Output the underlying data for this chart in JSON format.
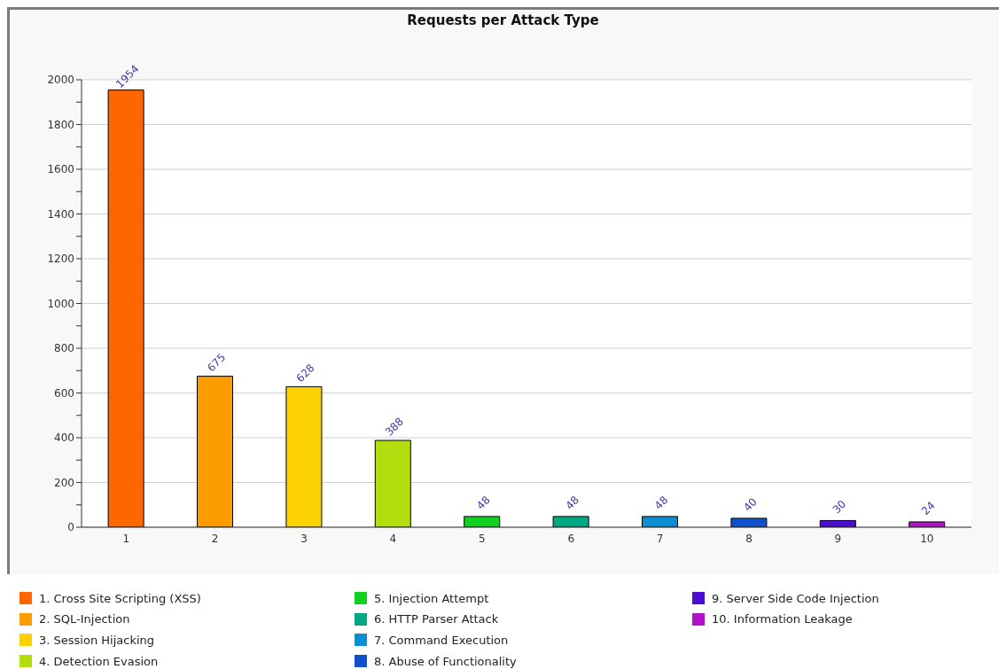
{
  "chart_data": {
    "type": "bar",
    "title": "Requests per Attack Type",
    "categories": [
      "1",
      "2",
      "3",
      "4",
      "5",
      "6",
      "7",
      "8",
      "9",
      "10"
    ],
    "series": [
      {
        "name": "1. Cross Site Scripting (XSS)",
        "color": "#ff6600",
        "values": [
          1954,
          null,
          null,
          null,
          null,
          null,
          null,
          null,
          null,
          null
        ]
      },
      {
        "name": "2. SQL-Injection",
        "color": "#fd9c00",
        "values": [
          null,
          675,
          null,
          null,
          null,
          null,
          null,
          null,
          null,
          null
        ]
      },
      {
        "name": "3. Session Hijacking",
        "color": "#fcd200",
        "values": [
          null,
          null,
          628,
          null,
          null,
          null,
          null,
          null,
          null,
          null
        ]
      },
      {
        "name": "4. Detection Evasion",
        "color": "#b2de10",
        "values": [
          null,
          null,
          null,
          388,
          null,
          null,
          null,
          null,
          null,
          null
        ]
      },
      {
        "name": "5. Injection Attempt",
        "color": "#10d020",
        "values": [
          null,
          null,
          null,
          null,
          48,
          null,
          null,
          null,
          null,
          null
        ]
      },
      {
        "name": "6. HTTP Parser Attack",
        "color": "#00a884",
        "values": [
          null,
          null,
          null,
          null,
          null,
          48,
          null,
          null,
          null,
          null
        ]
      },
      {
        "name": "7. Command Execution",
        "color": "#0b8ed2",
        "values": [
          null,
          null,
          null,
          null,
          null,
          null,
          48,
          null,
          null,
          null
        ]
      },
      {
        "name": "8. Abuse of Functionality",
        "color": "#1150cc",
        "values": [
          null,
          null,
          null,
          null,
          null,
          null,
          null,
          40,
          null,
          null
        ]
      },
      {
        "name": "9. Server Side Code Injection",
        "color": "#4b0ecf",
        "values": [
          null,
          null,
          null,
          null,
          null,
          null,
          null,
          null,
          30,
          null
        ]
      },
      {
        "name": "10. Information Leakage",
        "color": "#b013c5",
        "values": [
          null,
          null,
          null,
          null,
          null,
          null,
          null,
          null,
          null,
          24
        ]
      }
    ],
    "stacked": true,
    "ylim": [
      0,
      2000
    ],
    "yticks": [
      0,
      {
        "value": 100,
        "label": null
      },
      200,
      {
        "value": 300,
        "label": null
      },
      400,
      {
        "value": 500,
        "label": null
      },
      600,
      {
        "value": 700,
        "label": null
      },
      800,
      {
        "value": 900,
        "label": null
      },
      1000,
      {
        "value": 1100,
        "label": null
      },
      1200,
      {
        "value": 1300,
        "label": null
      },
      1400,
      {
        "value": 1500,
        "label": null
      },
      1600,
      {
        "value": 1700,
        "label": null
      },
      1800,
      {
        "value": 1900,
        "label": null
      },
      2000
    ],
    "grid": "y",
    "legend": "bottom",
    "data_labels": true
  }
}
